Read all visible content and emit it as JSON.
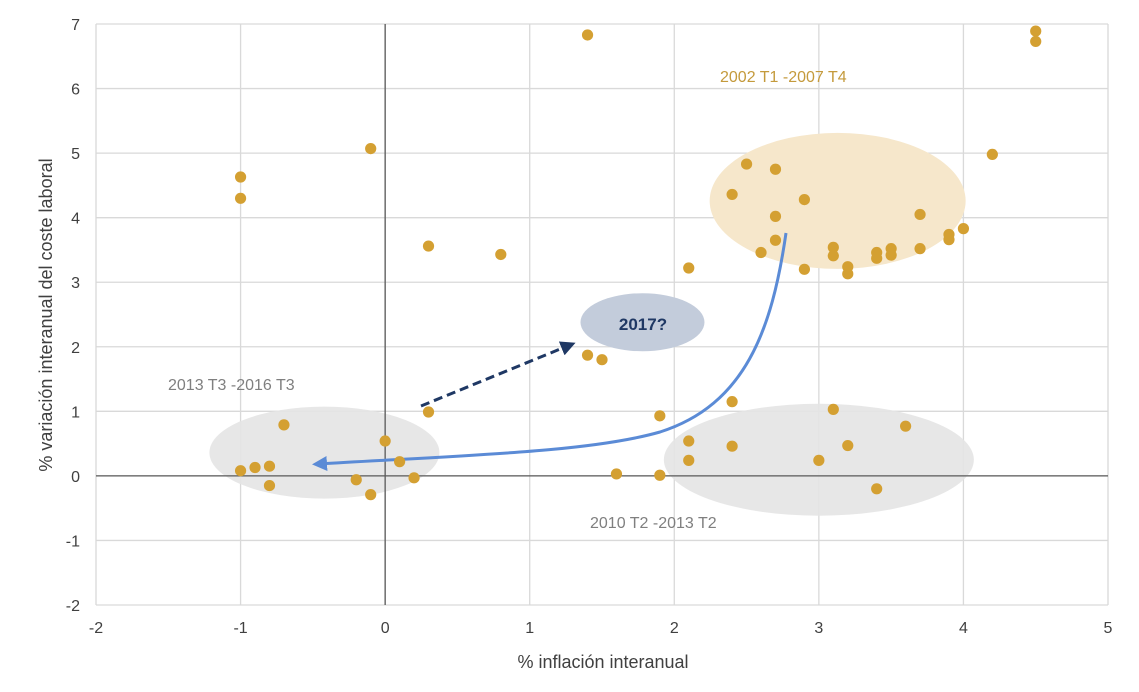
{
  "colors": {
    "point": "#D4A032",
    "grid": "#D9D9D9",
    "zero_axis": "#595959",
    "curve": "#5B8BD6",
    "dashed_arrow": "#1F3864",
    "ellipse_beige": "#F6E7CB",
    "ellipse_grey": "#E4E4E4",
    "ellipse_blue": "#C3CCDB",
    "label_gold": "#C49A3C",
    "label_grey": "#7F7F7F",
    "label_blue": "#1F3864"
  },
  "chart_data": {
    "type": "scatter",
    "xlabel": "% inflación interanual",
    "ylabel": "% variación interanual del coste laboral",
    "xlim": [
      -2,
      5
    ],
    "ylim": [
      -2,
      7
    ],
    "x_ticks": [
      -2,
      -1,
      0,
      1,
      2,
      3,
      4,
      5
    ],
    "y_ticks": [
      -2,
      -1,
      0,
      1,
      2,
      3,
      4,
      5,
      6,
      7
    ],
    "grid": true,
    "points": [
      {
        "x": -1.0,
        "y": 4.63
      },
      {
        "x": -1.0,
        "y": 4.3
      },
      {
        "x": -0.1,
        "y": 5.07
      },
      {
        "x": 0.3,
        "y": 3.56
      },
      {
        "x": 0.8,
        "y": 3.43
      },
      {
        "x": 1.4,
        "y": 6.83
      },
      {
        "x": 4.5,
        "y": 6.89
      },
      {
        "x": 4.5,
        "y": 6.73
      },
      {
        "x": 4.2,
        "y": 4.98
      },
      {
        "x": 2.5,
        "y": 4.83
      },
      {
        "x": 2.7,
        "y": 4.75
      },
      {
        "x": 2.4,
        "y": 4.36
      },
      {
        "x": 2.9,
        "y": 4.28
      },
      {
        "x": 2.7,
        "y": 4.02
      },
      {
        "x": 3.7,
        "y": 4.05
      },
      {
        "x": 4.0,
        "y": 3.83
      },
      {
        "x": 3.9,
        "y": 3.74
      },
      {
        "x": 3.9,
        "y": 3.66
      },
      {
        "x": 2.7,
        "y": 3.65
      },
      {
        "x": 2.6,
        "y": 3.46
      },
      {
        "x": 3.1,
        "y": 3.54
      },
      {
        "x": 3.1,
        "y": 3.41
      },
      {
        "x": 3.4,
        "y": 3.46
      },
      {
        "x": 3.4,
        "y": 3.37
      },
      {
        "x": 3.5,
        "y": 3.52
      },
      {
        "x": 3.5,
        "y": 3.42
      },
      {
        "x": 3.7,
        "y": 3.52
      },
      {
        "x": 3.2,
        "y": 3.24
      },
      {
        "x": 3.2,
        "y": 3.13
      },
      {
        "x": 2.9,
        "y": 3.2
      },
      {
        "x": 2.1,
        "y": 3.22
      },
      {
        "x": 1.4,
        "y": 1.87
      },
      {
        "x": 1.5,
        "y": 1.8
      },
      {
        "x": 0.3,
        "y": 0.99
      },
      {
        "x": -0.7,
        "y": 0.79
      },
      {
        "x": 0.0,
        "y": 0.54
      },
      {
        "x": 0.1,
        "y": 0.22
      },
      {
        "x": -1.0,
        "y": 0.08
      },
      {
        "x": -0.9,
        "y": 0.13
      },
      {
        "x": -0.8,
        "y": 0.15
      },
      {
        "x": -0.8,
        "y": -0.15
      },
      {
        "x": -0.2,
        "y": -0.06
      },
      {
        "x": 0.2,
        "y": -0.03
      },
      {
        "x": -0.1,
        "y": -0.29
      },
      {
        "x": 1.9,
        "y": 0.93
      },
      {
        "x": 2.4,
        "y": 1.15
      },
      {
        "x": 3.1,
        "y": 1.03
      },
      {
        "x": 3.6,
        "y": 0.77
      },
      {
        "x": 2.1,
        "y": 0.54
      },
      {
        "x": 2.4,
        "y": 0.46
      },
      {
        "x": 3.2,
        "y": 0.47
      },
      {
        "x": 2.1,
        "y": 0.24
      },
      {
        "x": 3.0,
        "y": 0.24
      },
      {
        "x": 1.6,
        "y": 0.03
      },
      {
        "x": 1.9,
        "y": 0.01
      },
      {
        "x": 3.4,
        "y": -0.2
      }
    ],
    "annotations": {
      "label_2002": "2002 T1 -2007 T4",
      "label_2013": "2013 T3 -2016 T3",
      "label_2010": "2010 T2 -2013 T2",
      "label_2017": "2017?"
    }
  }
}
